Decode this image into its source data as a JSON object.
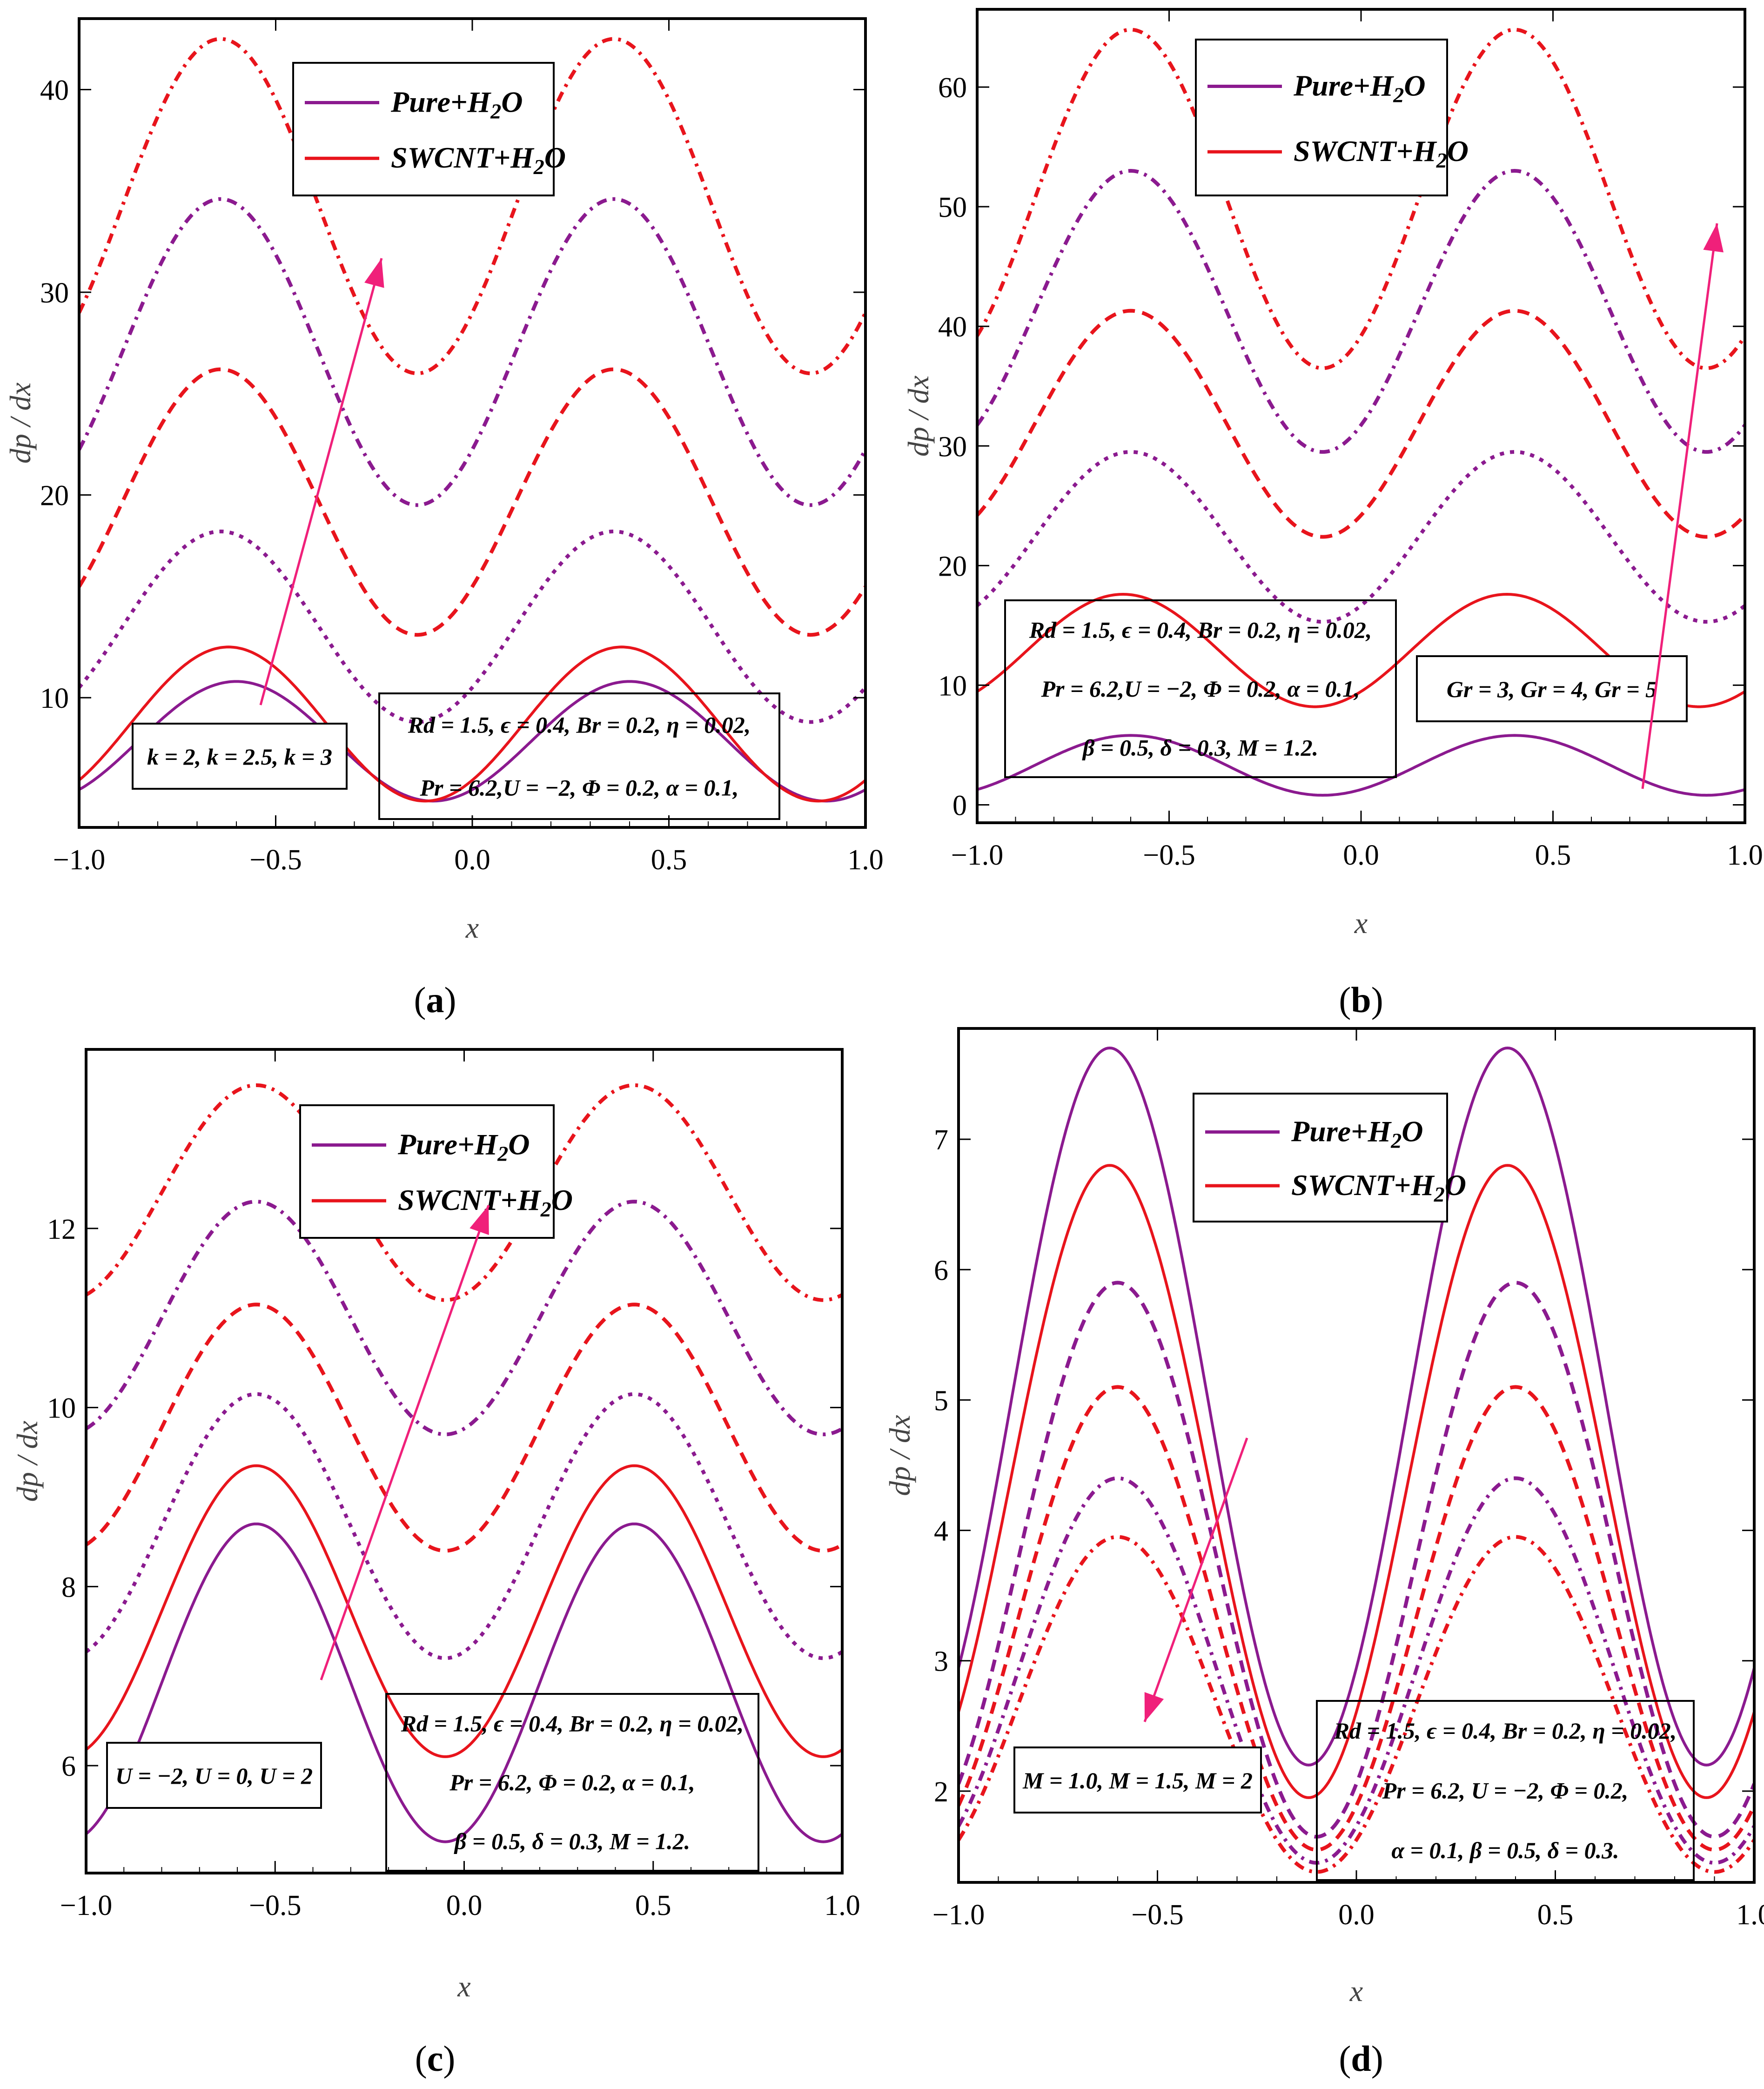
{
  "figure": {
    "legend": {
      "pure_label": "Pure+H2O",
      "swcnt_label": "SWCNT+H2O"
    },
    "x_label": "x",
    "y_label": "dp / dx",
    "colors": {
      "pure": "#8b1a8f",
      "swcnt": "#e8141c",
      "arrow": "#f0207a",
      "frame": "#000000"
    }
  },
  "chart_data": [
    {
      "id": "a",
      "type": "line",
      "caption": "(a)",
      "xlim": [
        -1.0,
        1.0
      ],
      "ylim": [
        3.6,
        43.5
      ],
      "x_ticks": [
        "-1.0",
        "-0.5",
        "0.0",
        "0.5",
        "1.0"
      ],
      "y_ticks": [
        "10",
        "20",
        "30",
        "40"
      ],
      "x_label": "x",
      "y_label": "dp / dx",
      "legend_labels": [
        "Pure+H2O",
        "SWCNT+H2O"
      ],
      "param_label": "k = 2, k = 2.5, k = 3",
      "annotation_lines": [
        "Rd = 1.5, ϵ = 0.4, Br = 0.2, η = 0.02,",
        "Pr = 6.2,U = −2, Φ = 0.2, α = 0.1,"
      ],
      "arrow_direction": "increasing",
      "series": [
        {
          "name": "Pure+H2O, k = 2",
          "fluid": "pure",
          "style": "solid",
          "peak_x": -0.6,
          "min_y": 4.9,
          "max_y": 10.8
        },
        {
          "name": "SWCNT+H2O, k = 2",
          "fluid": "swcnt",
          "style": "solid",
          "peak_x": -0.62,
          "min_y": 4.9,
          "max_y": 12.5
        },
        {
          "name": "Pure+H2O, k = 2.5",
          "fluid": "pure",
          "style": "dotted",
          "peak_x": -0.64,
          "min_y": 8.8,
          "max_y": 18.2
        },
        {
          "name": "SWCNT+H2O, k = 2.5",
          "fluid": "swcnt",
          "style": "dashed",
          "peak_x": -0.64,
          "min_y": 13.1,
          "max_y": 26.2
        },
        {
          "name": "Pure+H2O, k = 3",
          "fluid": "pure",
          "style": "dashdot",
          "peak_x": -0.64,
          "min_y": 19.5,
          "max_y": 34.6
        },
        {
          "name": "SWCNT+H2O, k = 3",
          "fluid": "swcnt",
          "style": "dashdot",
          "peak_x": -0.64,
          "min_y": 26.0,
          "max_y": 42.5
        }
      ]
    },
    {
      "id": "b",
      "type": "line",
      "caption": "(b)",
      "xlim": [
        -1.0,
        1.0
      ],
      "ylim": [
        -1.5,
        66.5
      ],
      "x_ticks": [
        "-1.0",
        "-0.5",
        "0.0",
        "0.5",
        "1.0"
      ],
      "y_ticks": [
        "0",
        "10",
        "20",
        "30",
        "40",
        "50",
        "60"
      ],
      "x_label": "x",
      "y_label": "dp / dx",
      "legend_labels": [
        "Pure+H2O",
        "SWCNT+H2O"
      ],
      "param_label": "Gr = 3, Gr = 4, Gr = 5",
      "annotation_lines": [
        "Rd = 1.5, ϵ = 0.4, Br = 0.2, η = 0.02,",
        "Pr = 6.2,U = −2, Φ = 0.2, α = 0.1,",
        "β = 0.5, δ = 0.3, M = 1.2."
      ],
      "arrow_direction": "increasing",
      "series": [
        {
          "name": "Pure+H2O, Gr = 3",
          "fluid": "pure",
          "style": "solid",
          "peak_x": -0.6,
          "min_y": 0.8,
          "max_y": 5.8
        },
        {
          "name": "SWCNT+H2O, Gr = 3",
          "fluid": "swcnt",
          "style": "solid",
          "peak_x": -0.62,
          "min_y": 8.2,
          "max_y": 17.6
        },
        {
          "name": "Pure+H2O, Gr = 4",
          "fluid": "pure",
          "style": "dotted",
          "peak_x": -0.6,
          "min_y": 15.3,
          "max_y": 29.5
        },
        {
          "name": "SWCNT+H2O, Gr = 4",
          "fluid": "swcnt",
          "style": "dashed",
          "peak_x": -0.6,
          "min_y": 22.4,
          "max_y": 41.3
        },
        {
          "name": "Pure+H2O, Gr = 5",
          "fluid": "pure",
          "style": "dashdot",
          "peak_x": -0.6,
          "min_y": 29.5,
          "max_y": 53.0
        },
        {
          "name": "SWCNT+H2O, Gr = 5",
          "fluid": "swcnt",
          "style": "dashdot",
          "peak_x": -0.6,
          "min_y": 36.5,
          "max_y": 64.8
        }
      ]
    },
    {
      "id": "c",
      "type": "line",
      "caption": "(c)",
      "xlim": [
        -1.0,
        1.0
      ],
      "ylim": [
        4.8,
        14.0
      ],
      "x_ticks": [
        "-1.0",
        "-0.5",
        "0.0",
        "0.5",
        "1.0"
      ],
      "y_ticks": [
        "6",
        "8",
        "10",
        "12"
      ],
      "x_label": "x",
      "y_label": "dp / dx",
      "legend_labels": [
        "Pure+H2O",
        "SWCNT+H2O"
      ],
      "param_label": "U = −2, U = 0, U = 2",
      "annotation_lines": [
        "Rd = 1.5, ϵ = 0.4, Br = 0.2, η = 0.02,",
        "Pr = 6.2, Φ = 0.2, α = 0.1,",
        "β = 0.5, δ = 0.3, M = 1.2."
      ],
      "arrow_direction": "increasing",
      "series": [
        {
          "name": "Pure+H2O, U = −2",
          "fluid": "pure",
          "style": "solid",
          "peak_x": -0.55,
          "min_y": 5.15,
          "max_y": 8.7
        },
        {
          "name": "SWCNT+H2O, U = −2",
          "fluid": "swcnt",
          "style": "solid",
          "peak_x": -0.55,
          "min_y": 6.1,
          "max_y": 9.35
        },
        {
          "name": "Pure+H2O, U = 0",
          "fluid": "pure",
          "style": "dotted",
          "peak_x": -0.55,
          "min_y": 7.2,
          "max_y": 10.15
        },
        {
          "name": "SWCNT+H2O, U = 0",
          "fluid": "swcnt",
          "style": "dashed",
          "peak_x": -0.55,
          "min_y": 8.4,
          "max_y": 11.15
        },
        {
          "name": "Pure+H2O, U = 2",
          "fluid": "pure",
          "style": "dashdot",
          "peak_x": -0.55,
          "min_y": 9.7,
          "max_y": 12.3
        },
        {
          "name": "SWCNT+H2O, U = 2",
          "fluid": "swcnt",
          "style": "dashdot",
          "peak_x": -0.55,
          "min_y": 11.2,
          "max_y": 13.6
        }
      ]
    },
    {
      "id": "d",
      "type": "line",
      "caption": "(d)",
      "xlim": [
        -1.0,
        1.0
      ],
      "ylim": [
        1.3,
        7.85
      ],
      "x_ticks": [
        "-1.0",
        "-0.5",
        "0.0",
        "0.5",
        "1.0"
      ],
      "y_ticks": [
        "2",
        "3",
        "4",
        "5",
        "6",
        "7"
      ],
      "x_label": "x",
      "y_label": "dp / dx",
      "legend_labels": [
        "Pure+H2O",
        "SWCNT+H2O"
      ],
      "param_label": "M = 1.0, M = 1.5, M = 2",
      "annotation_lines": [
        "Rd = 1.5, ϵ = 0.4, Br = 0.2, η = 0.02,",
        "Pr = 6.2, U = −2, Φ = 0.2,",
        "α = 0.1, β = 0.5, δ = 0.3."
      ],
      "arrow_direction": "decreasing",
      "series": [
        {
          "name": "Pure+H2O, M = 1.0",
          "fluid": "pure",
          "style": "solid",
          "peak_x": -0.62,
          "min_y": 2.2,
          "max_y": 7.7
        },
        {
          "name": "SWCNT+H2O, M = 1.0",
          "fluid": "swcnt",
          "style": "solid",
          "peak_x": -0.62,
          "min_y": 1.95,
          "max_y": 6.8
        },
        {
          "name": "Pure+H2O, M = 1.5",
          "fluid": "pure",
          "style": "dashed",
          "peak_x": -0.6,
          "min_y": 1.65,
          "max_y": 5.9
        },
        {
          "name": "SWCNT+H2O, M = 1.5",
          "fluid": "swcnt",
          "style": "dashed",
          "peak_x": -0.6,
          "min_y": 1.55,
          "max_y": 5.1
        },
        {
          "name": "Pure+H2O, M = 2",
          "fluid": "pure",
          "style": "dashdot",
          "peak_x": -0.6,
          "min_y": 1.45,
          "max_y": 4.4
        },
        {
          "name": "SWCNT+H2O, M = 2",
          "fluid": "swcnt",
          "style": "dashdot",
          "peak_x": -0.6,
          "min_y": 1.38,
          "max_y": 3.95
        }
      ]
    }
  ]
}
